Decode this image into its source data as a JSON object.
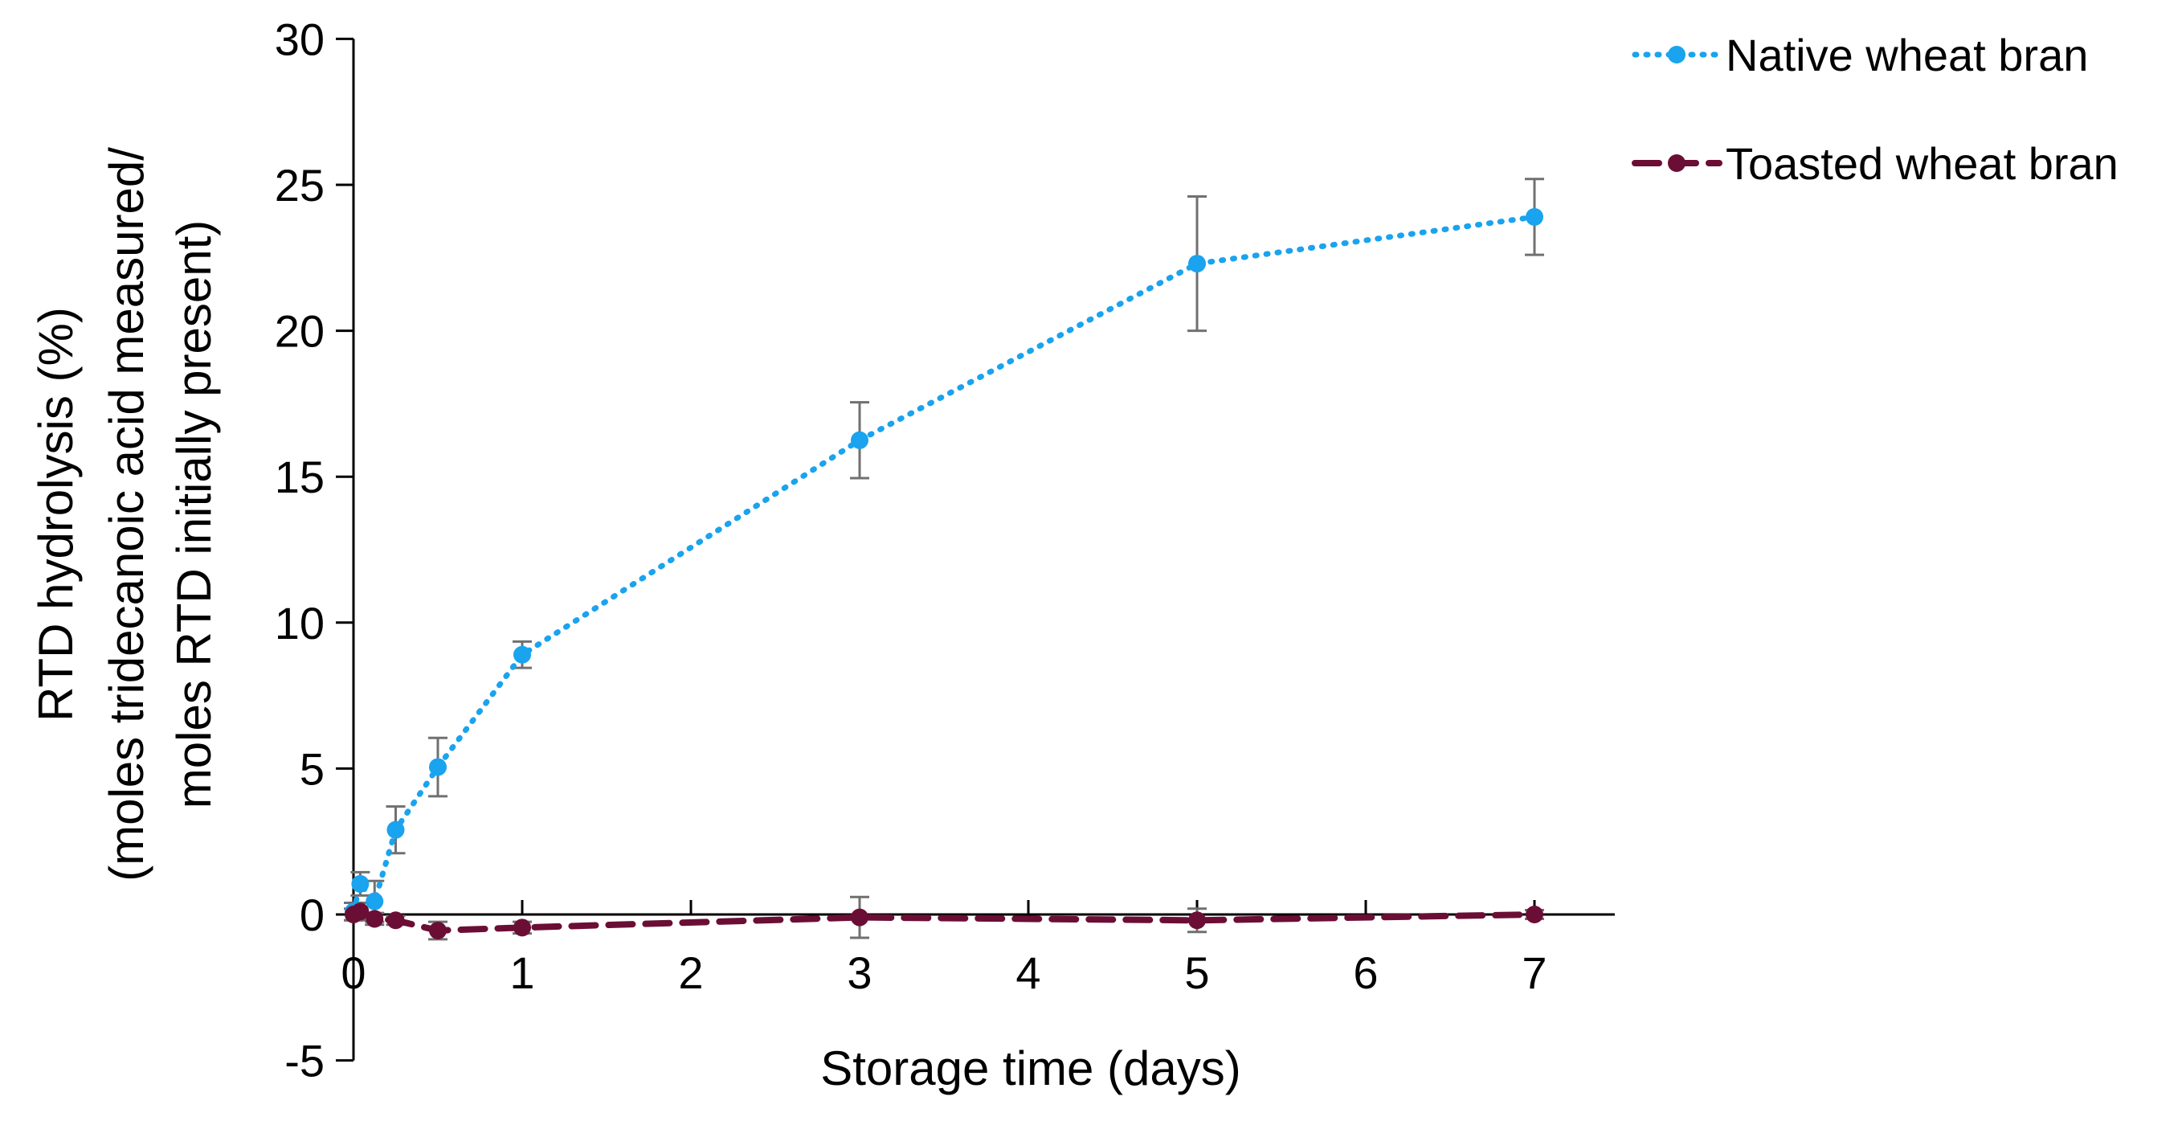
{
  "chart_data": {
    "type": "line",
    "title": "",
    "xlabel": "Storage time (days)",
    "ylabel_lines": [
      "RTD hydrolysis (%)",
      "(moles tridecanoic acid measured/",
      "moles RTD initially present)"
    ],
    "xlim": [
      0,
      7.5
    ],
    "ylim": [
      -5,
      30
    ],
    "x_ticks": [
      0,
      1,
      2,
      3,
      4,
      5,
      6,
      7
    ],
    "y_ticks": [
      -5,
      0,
      5,
      10,
      15,
      20,
      25,
      30
    ],
    "grid": false,
    "legend_position": "top-right",
    "series": [
      {
        "name": "Native wheat bran",
        "color": "#1AA3EE",
        "line_style": "dotted",
        "x": [
          0,
          0.04,
          0.125,
          0.25,
          0.5,
          1,
          3,
          5,
          7
        ],
        "y": [
          0.1,
          1.05,
          0.45,
          2.9,
          5.05,
          8.9,
          16.25,
          22.3,
          23.9
        ],
        "error": [
          0.3,
          0.4,
          0.7,
          0.8,
          1.0,
          0.45,
          1.3,
          2.3,
          1.3
        ]
      },
      {
        "name": "Toasted wheat bran",
        "color": "#6B0E35",
        "line_style": "dashed",
        "x": [
          0,
          0.04,
          0.125,
          0.25,
          0.5,
          1,
          3,
          5,
          7
        ],
        "y": [
          0.0,
          0.1,
          -0.15,
          -0.2,
          -0.55,
          -0.45,
          -0.1,
          -0.2,
          0.0
        ],
        "error": [
          0.2,
          0.3,
          0.2,
          0.15,
          0.3,
          0.2,
          0.7,
          0.4,
          0.15
        ]
      }
    ]
  }
}
